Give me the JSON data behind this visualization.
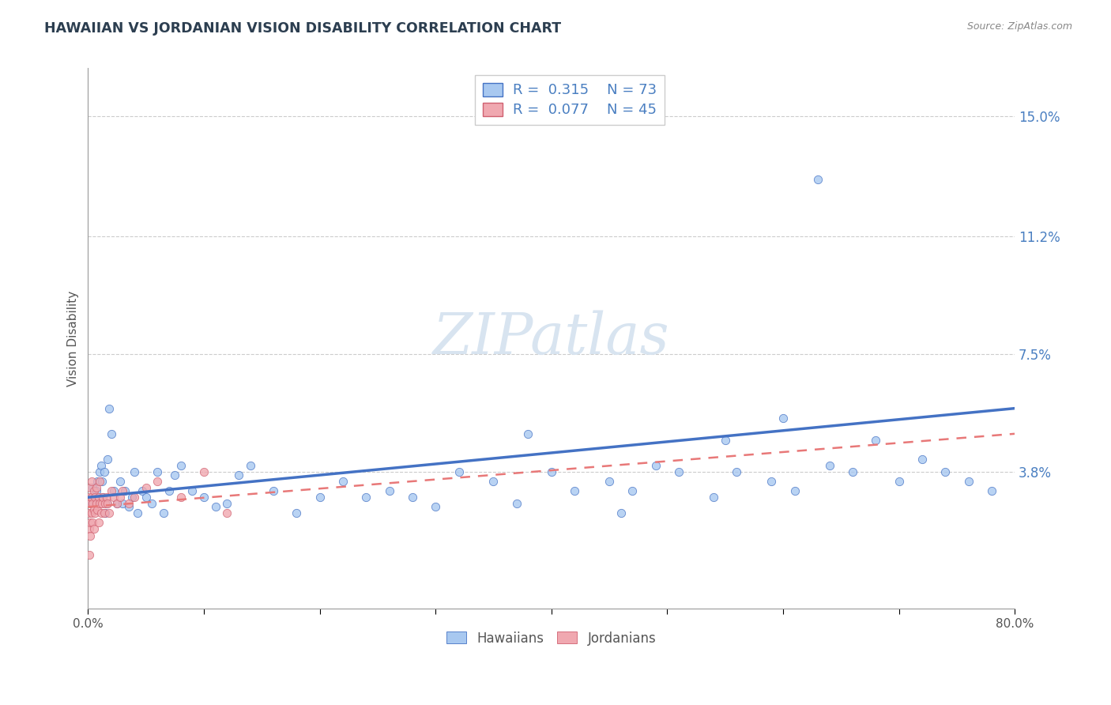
{
  "title": "HAWAIIAN VS JORDANIAN VISION DISABILITY CORRELATION CHART",
  "source_text": "Source: ZipAtlas.com",
  "ylabel": "Vision Disability",
  "xlim": [
    0.0,
    0.8
  ],
  "ylim": [
    -0.005,
    0.165
  ],
  "yticks": [
    0.038,
    0.075,
    0.112,
    0.15
  ],
  "ytick_labels": [
    "3.8%",
    "7.5%",
    "11.2%",
    "15.0%"
  ],
  "hawaiian_color": "#a8c8f0",
  "jordanian_color": "#f0a8b0",
  "hawaiian_line_color": "#4472c4",
  "jordanian_line_color": "#e87878",
  "text_color": "#4a7fc1",
  "title_color": "#2c3e50",
  "watermark_color": "#d8e4f0",
  "R_hawaiian": 0.315,
  "N_hawaiian": 73,
  "R_jordanian": 0.077,
  "N_jordanian": 45,
  "hawaiian_trend_x": [
    0.0,
    0.8
  ],
  "hawaiian_trend_y": [
    0.03,
    0.058
  ],
  "jordanian_trend_x": [
    0.0,
    0.8
  ],
  "jordanian_trend_y": [
    0.027,
    0.05
  ],
  "hawaiian_x": [
    0.003,
    0.004,
    0.005,
    0.006,
    0.007,
    0.008,
    0.009,
    0.01,
    0.011,
    0.012,
    0.013,
    0.014,
    0.015,
    0.016,
    0.017,
    0.018,
    0.02,
    0.022,
    0.025,
    0.028,
    0.03,
    0.032,
    0.035,
    0.038,
    0.04,
    0.043,
    0.047,
    0.05,
    0.055,
    0.06,
    0.065,
    0.07,
    0.075,
    0.08,
    0.09,
    0.1,
    0.11,
    0.12,
    0.13,
    0.14,
    0.16,
    0.18,
    0.2,
    0.22,
    0.24,
    0.26,
    0.28,
    0.3,
    0.32,
    0.35,
    0.37,
    0.4,
    0.42,
    0.45,
    0.47,
    0.49,
    0.51,
    0.54,
    0.56,
    0.59,
    0.61,
    0.64,
    0.66,
    0.68,
    0.7,
    0.72,
    0.74,
    0.76,
    0.78,
    0.55,
    0.46,
    0.38,
    0.6
  ],
  "hawaiian_y": [
    0.028,
    0.033,
    0.03,
    0.028,
    0.032,
    0.035,
    0.029,
    0.038,
    0.04,
    0.035,
    0.03,
    0.038,
    0.025,
    0.028,
    0.042,
    0.058,
    0.05,
    0.032,
    0.028,
    0.035,
    0.028,
    0.032,
    0.027,
    0.03,
    0.038,
    0.025,
    0.032,
    0.03,
    0.028,
    0.038,
    0.025,
    0.032,
    0.037,
    0.04,
    0.032,
    0.03,
    0.027,
    0.028,
    0.037,
    0.04,
    0.032,
    0.025,
    0.03,
    0.035,
    0.03,
    0.032,
    0.03,
    0.027,
    0.038,
    0.035,
    0.028,
    0.038,
    0.032,
    0.035,
    0.032,
    0.04,
    0.038,
    0.03,
    0.038,
    0.035,
    0.032,
    0.04,
    0.038,
    0.048,
    0.035,
    0.042,
    0.038,
    0.035,
    0.032,
    0.048,
    0.025,
    0.05,
    0.055
  ],
  "hawaiian_outlier_x": [
    0.63
  ],
  "hawaiian_outlier_y": [
    0.13
  ],
  "jordanian_x": [
    0.001,
    0.001,
    0.001,
    0.001,
    0.002,
    0.002,
    0.002,
    0.002,
    0.003,
    0.003,
    0.003,
    0.004,
    0.004,
    0.005,
    0.005,
    0.005,
    0.006,
    0.006,
    0.007,
    0.007,
    0.008,
    0.009,
    0.009,
    0.01,
    0.01,
    0.011,
    0.012,
    0.013,
    0.014,
    0.015,
    0.016,
    0.017,
    0.018,
    0.02,
    0.022,
    0.025,
    0.028,
    0.03,
    0.035,
    0.04,
    0.05,
    0.06,
    0.08,
    0.1,
    0.12
  ],
  "jordanian_y": [
    0.03,
    0.025,
    0.02,
    0.012,
    0.033,
    0.028,
    0.022,
    0.018,
    0.03,
    0.025,
    0.035,
    0.028,
    0.022,
    0.032,
    0.026,
    0.02,
    0.03,
    0.025,
    0.028,
    0.033,
    0.026,
    0.022,
    0.03,
    0.028,
    0.035,
    0.025,
    0.028,
    0.03,
    0.025,
    0.028,
    0.03,
    0.028,
    0.025,
    0.032,
    0.03,
    0.028,
    0.03,
    0.032,
    0.028,
    0.03,
    0.033,
    0.035,
    0.03,
    0.038,
    0.025
  ],
  "background_color": "#ffffff",
  "grid_color": "#cccccc",
  "spine_color": "#999999"
}
